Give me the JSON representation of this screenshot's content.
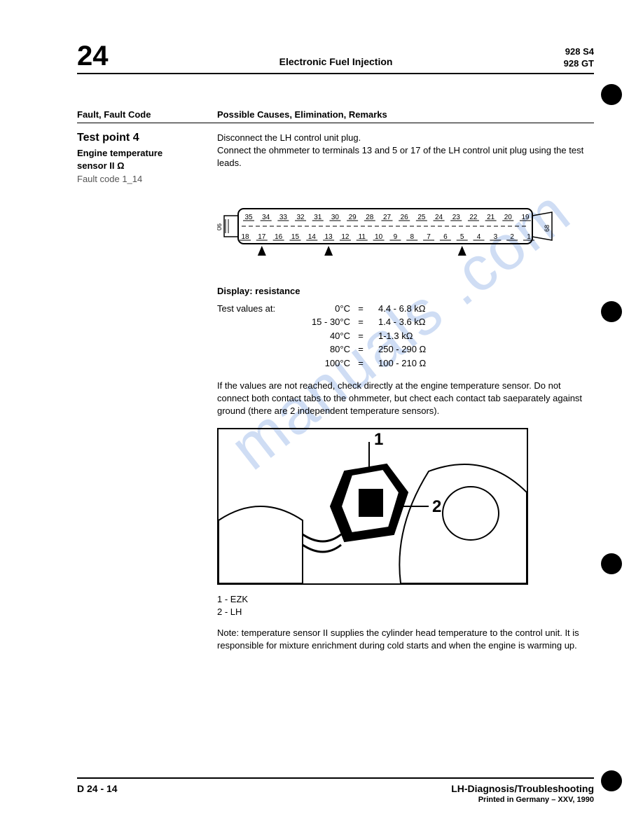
{
  "header": {
    "section_number": "24",
    "title": "Electronic Fuel Injection",
    "model1": "928 S4",
    "model2": "928 GT"
  },
  "columns": {
    "left": "Fault, Fault Code",
    "right": "Possible Causes, Elimination, Remarks"
  },
  "test": {
    "title": "Test point 4",
    "subtitle_line1": "Engine temperature",
    "subtitle_line2": "sensor II Ω",
    "fault_code": "Fault code 1_14"
  },
  "instruction": {
    "line1": "Disconnect the LH control unit plug.",
    "line2": "Connect the ohmmeter to terminals 13 and 5 or 17 of the LH control unit plug using the test leads."
  },
  "connector": {
    "top_pins": [
      "35",
      "34",
      "33",
      "32",
      "31",
      "30",
      "29",
      "28",
      "27",
      "26",
      "25",
      "24",
      "23",
      "22",
      "21",
      "20",
      "19"
    ],
    "bottom_pins": [
      "18",
      "17",
      "16",
      "15",
      "14",
      "13",
      "12",
      "11",
      "10",
      "9",
      "8",
      "7",
      "6",
      "5",
      "4",
      "3",
      "2",
      "1"
    ],
    "arrows_at": [
      17,
      13,
      5
    ],
    "left_label": "06",
    "right_label": "68"
  },
  "display": {
    "heading": "Display: resistance",
    "label": "Test values at:",
    "rows": [
      {
        "temp": "0°C",
        "val": "4.4 - 6.8 kΩ"
      },
      {
        "temp": "15 - 30°C",
        "val": "1.4 - 3.6 kΩ"
      },
      {
        "temp": "40°C",
        "val": "1-1.3 kΩ"
      },
      {
        "temp": "80°C",
        "val": "250 - 290 Ω"
      },
      {
        "temp": "100°C",
        "val": "100 - 210 Ω"
      }
    ]
  },
  "paragraph": "If the values are not reached, check directly at the engine temperature sensor. Do not connect both contact tabs to the ohmmeter, but chect each contact tab saeparately against ground (there are 2 independent temperature sensors).",
  "sensor_labels": {
    "one": "1",
    "two": "2"
  },
  "legend": {
    "l1": "1 - EZK",
    "l2": "2 - LH"
  },
  "note": "Note: temperature sensor II supplies the cylinder head temperature to the control unit. It is responsible for mixture enrichment during cold starts and when the engine is warming up.",
  "footer": {
    "left": "D 24 - 14",
    "right_title": "LH-Diagnosis/Troubleshooting",
    "right_sub": "Printed in Germany – XXV, 1990"
  },
  "watermark": "manuals   .com",
  "styling": {
    "page_bg": "#ffffff",
    "text_color": "#000000",
    "watermark_color": "#97b6e8",
    "rule_color": "#000000",
    "font_family": "Arial, Helvetica, sans-serif",
    "punch_hole_color": "#000000"
  }
}
